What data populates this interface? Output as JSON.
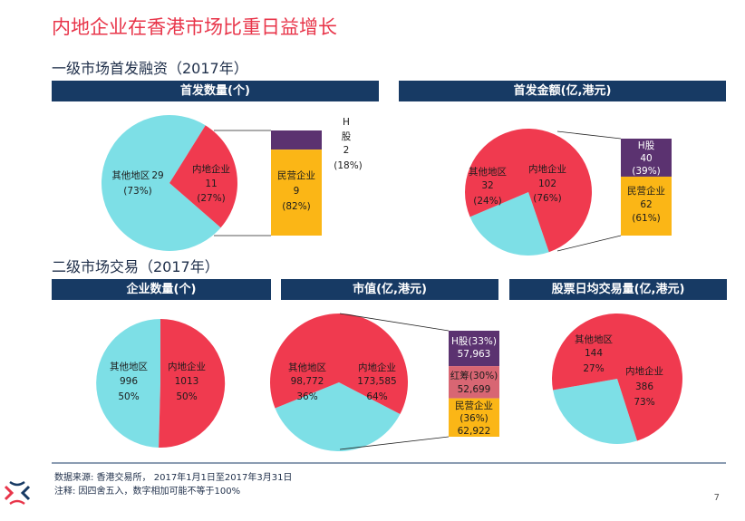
{
  "title": "内地企业在香港市场比重日益增长",
  "section1": "一级市场首发融资（2017年）",
  "section2": "二级市场交易（2017年）",
  "panels": {
    "ipo_count": "首发数量(个)",
    "ipo_amount": "首发金额(亿,港元)",
    "companies": "企业数量(个)",
    "market_cap": "市值(亿,港元)",
    "turnover": "股票日均交易量(亿,港元)"
  },
  "footer": {
    "source": "数据来源: 香港交易所， 2017年1月1日至2017年3月31日",
    "note": "注释: 因四舍五入，数字相加可能不等于100%"
  },
  "page_number": "7",
  "colors": {
    "mainland": "#f03a4f",
    "others": "#7ddfe6",
    "h": "#5b3270",
    "private": "#fbb616",
    "redchip": "#d86673",
    "bar": "#173a64"
  },
  "chart_data": [
    {
      "type": "pie",
      "title": "首发数量(个)",
      "slices": [
        {
          "name": "内地企业",
          "value": 11,
          "pct": "(27%)"
        },
        {
          "name": "其他地区",
          "value": 29,
          "pct": "(73%)"
        }
      ],
      "breakdown": [
        {
          "name": "H股",
          "value": 2,
          "pct": "(18%)"
        },
        {
          "name": "民营企业",
          "value": 9,
          "pct": "(82%)"
        }
      ]
    },
    {
      "type": "pie",
      "title": "首发金额(亿,港元)",
      "slices": [
        {
          "name": "内地企业",
          "value": 102,
          "pct": "(76%)"
        },
        {
          "name": "其他地区",
          "value": 32,
          "pct": "(24%)"
        }
      ],
      "breakdown": [
        {
          "name": "H股",
          "value": 40,
          "pct": "(39%)"
        },
        {
          "name": "民营企业",
          "value": 62,
          "pct": "(61%)"
        }
      ]
    },
    {
      "type": "pie",
      "title": "企业数量(个)",
      "slices": [
        {
          "name": "内地企业",
          "value": 1013,
          "pct": "50%"
        },
        {
          "name": "其他地区",
          "value": 996,
          "pct": "50%"
        }
      ]
    },
    {
      "type": "pie",
      "title": "市值(亿,港元)",
      "slices": [
        {
          "name": "内地企业",
          "value": "173,585",
          "pct": "64%"
        },
        {
          "name": "其他地区",
          "value": "98,772",
          "pct": "36%"
        }
      ],
      "breakdown": [
        {
          "name": "H股",
          "pct": "(33%)",
          "value": "57,963"
        },
        {
          "name": "红筹",
          "pct": "(30%)",
          "value": "52,699"
        },
        {
          "name": "民营企业",
          "pct": "(36%)",
          "value": "62,922"
        }
      ]
    },
    {
      "type": "pie",
      "title": "股票日均交易量(亿,港元)",
      "slices": [
        {
          "name": "内地企业",
          "value": 386,
          "pct": "73%"
        },
        {
          "name": "其他地区",
          "value": 144,
          "pct": "27%"
        }
      ]
    }
  ]
}
